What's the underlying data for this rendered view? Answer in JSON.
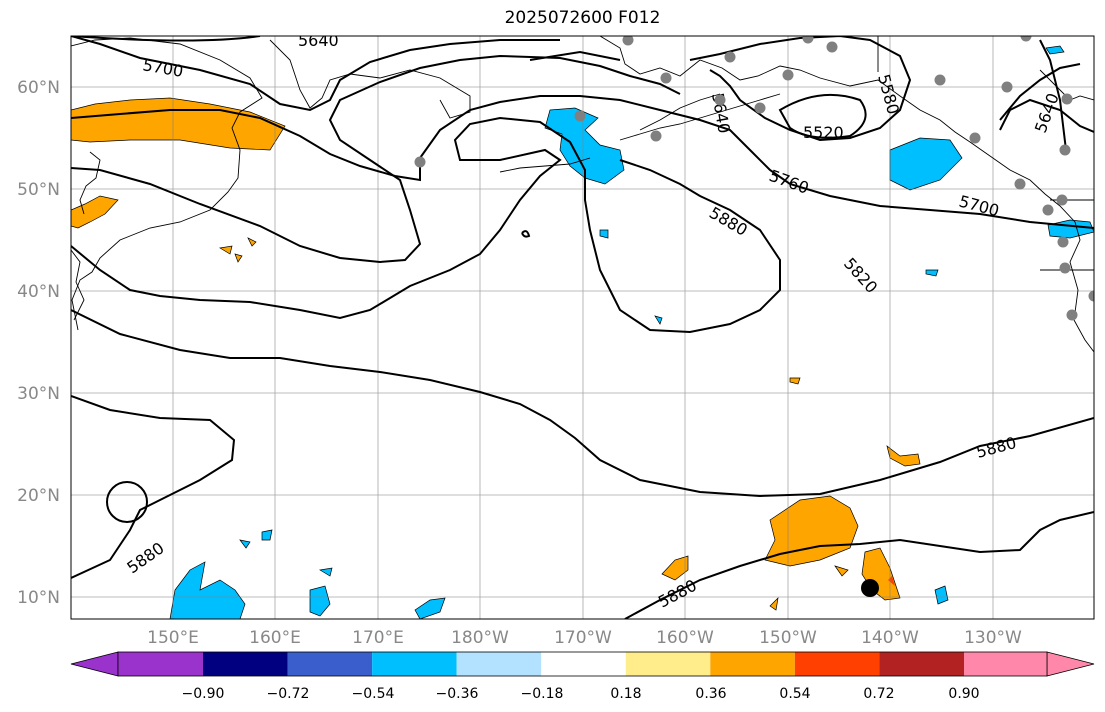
{
  "title": "2025072600 F012",
  "longitude_ticks": [
    "150°E",
    "160°E",
    "170°E",
    "180°W",
    "170°W",
    "160°W",
    "150°W",
    "140°W",
    "130°W"
  ],
  "latitude_ticks": [
    "60°N",
    "50°N",
    "40°N",
    "30°N",
    "20°N",
    "10°N"
  ],
  "contour_labels": {
    "c5640a": "5640",
    "c5700a": "5700",
    "c5640b": "5640",
    "c5520": "5520",
    "c5580": "5580",
    "c5640c": "5640",
    "c5760": "5760",
    "c5700b": "5700",
    "c5880a": "5880",
    "c5820": "5820",
    "c5880b": "5880",
    "c5880c": "5880",
    "c5880d": "5880"
  },
  "colorbar": {
    "colors": [
      "#9933cc",
      "#000080",
      "#3a5fcd",
      "#00bfff",
      "#b2e2ff",
      "#ffffff",
      "#ffec8b",
      "#ffa500",
      "#ff4000",
      "#b22222",
      "#ff88aa"
    ],
    "tick_labels": [
      "−0.90",
      "−0.72",
      "−0.54",
      "−0.36",
      "−0.18",
      "0.18",
      "0.36",
      "0.54",
      "0.72",
      "0.90"
    ]
  }
}
